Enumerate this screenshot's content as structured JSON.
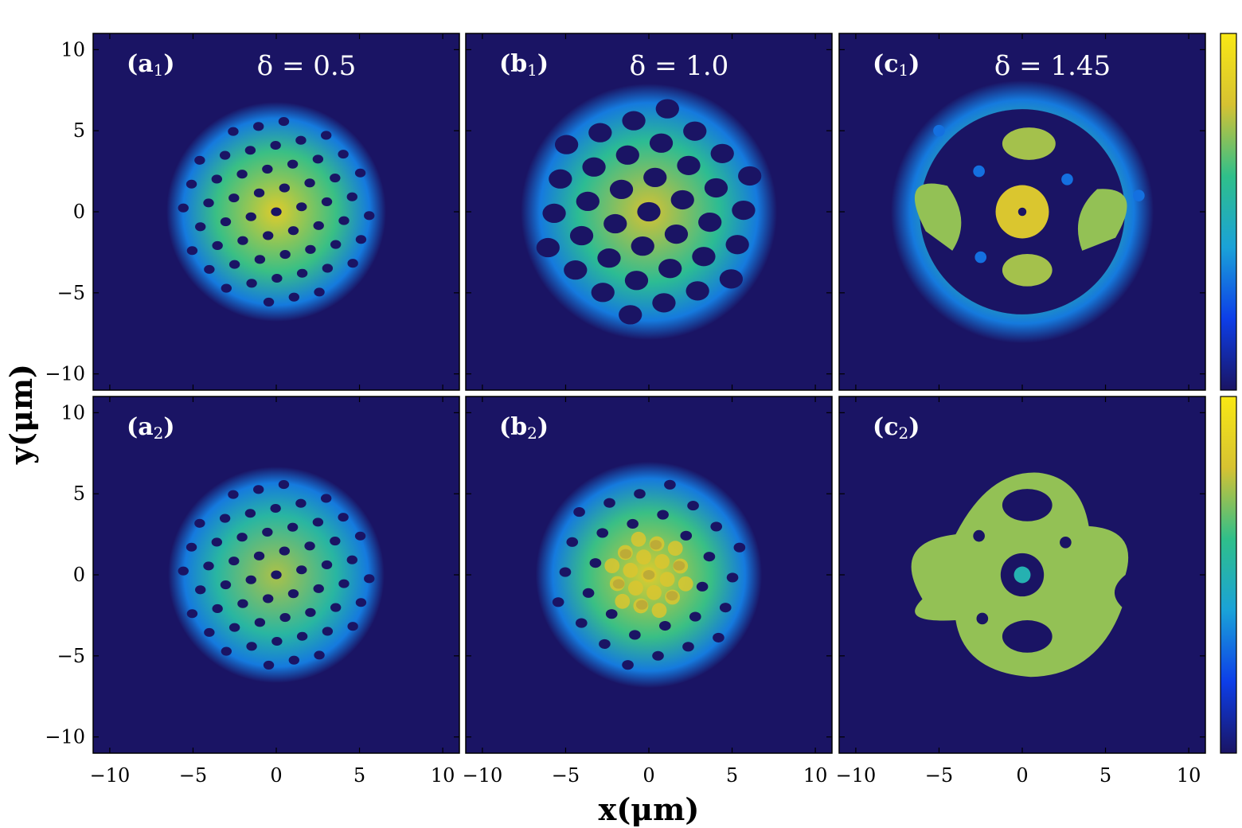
{
  "chart_data": [
    {
      "type": "heatmap",
      "panel_label": "a",
      "panel_sub": "1",
      "annotation": "δ = 0.5",
      "delta": 0.5,
      "xlim": [
        -11,
        11
      ],
      "ylim": [
        -11,
        11
      ],
      "blob_radius": 6.6,
      "hole_pattern": "dense-lattice",
      "peak_intensity": 0.85
    },
    {
      "type": "heatmap",
      "panel_label": "b",
      "panel_sub": "1",
      "annotation": "δ = 1.0",
      "delta": 1.0,
      "xlim": [
        -11,
        11
      ],
      "ylim": [
        -11,
        11
      ],
      "blob_radius": 7.7,
      "hole_pattern": "large-lattice",
      "peak_intensity": 0.8
    },
    {
      "type": "heatmap",
      "panel_label": "c",
      "panel_sub": "1",
      "annotation": "δ = 1.45",
      "delta": 1.45,
      "xlim": [
        -11,
        11
      ],
      "ylim": [
        -11,
        11
      ],
      "blob_radius": 7.9,
      "hole_pattern": "ring-with-islands",
      "peak_intensity": 0.85
    },
    {
      "type": "heatmap",
      "panel_label": "a",
      "panel_sub": "2",
      "annotation": "",
      "delta": 0.5,
      "xlim": [
        -11,
        11
      ],
      "ylim": [
        -11,
        11
      ],
      "blob_radius": 6.5,
      "hole_pattern": "dense-lattice",
      "peak_intensity": 0.75
    },
    {
      "type": "heatmap",
      "panel_label": "b",
      "panel_sub": "2",
      "annotation": "",
      "delta": 1.0,
      "xlim": [
        -11,
        11
      ],
      "ylim": [
        -11,
        11
      ],
      "blob_radius": 6.8,
      "hole_pattern": "lattice-bright-sites",
      "peak_intensity": 0.85
    },
    {
      "type": "heatmap",
      "panel_label": "c",
      "panel_sub": "2",
      "annotation": "",
      "delta": 1.45,
      "xlim": [
        -11,
        11
      ],
      "ylim": [
        -11,
        11
      ],
      "blob_radius": 7.0,
      "hole_pattern": "filled-core-with-holes",
      "peak_intensity": 0.85
    }
  ],
  "axes": {
    "xlabel": "x(μm)",
    "ylabel": "y(μm)",
    "ticks": [
      -10,
      -5,
      0,
      5,
      10
    ],
    "tick_labels": [
      "−10",
      "−5",
      "0",
      "5",
      "10"
    ]
  },
  "colormap": [
    "#1a1464",
    "#0d3ee8",
    "#1aa2d8",
    "#2fbf8a",
    "#d6c232",
    "#f9e814"
  ]
}
